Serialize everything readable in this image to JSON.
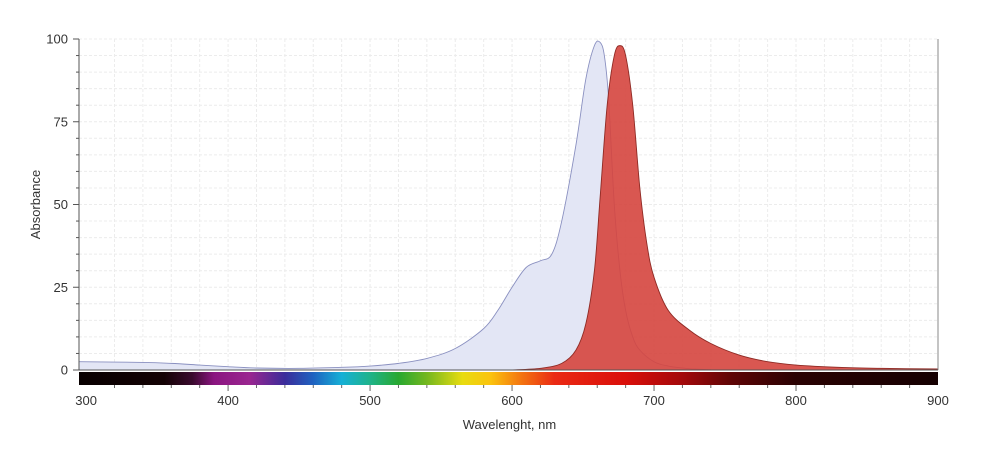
{
  "chart_data": {
    "type": "area",
    "title": "",
    "xlabel": "Wavelenght, nm",
    "ylabel": "Absorbance",
    "xlim": [
      295,
      900
    ],
    "ylim": [
      0,
      100
    ],
    "x_ticks": [
      300,
      400,
      500,
      600,
      700,
      800,
      900
    ],
    "y_ticks": [
      0,
      25,
      50,
      75,
      100
    ],
    "grid": true,
    "legend": "none",
    "colors": {
      "absorbance_fill": "#e3e6f5",
      "absorbance_line": "#8a90c0",
      "emission_fill": "#d5453e",
      "emission_line": "#8f2a24",
      "ylabel_color": "#4a5590"
    },
    "series": [
      {
        "name": "",
        "kind": "absorbance",
        "x": [
          295,
          340,
          360,
          380,
          400,
          420,
          450,
          480,
          500,
          520,
          540,
          560,
          580,
          590,
          600,
          610,
          620,
          628,
          635,
          645,
          652,
          658,
          662,
          665,
          668,
          672,
          676,
          680,
          685,
          690,
          700,
          710,
          725,
          740
        ],
        "y": [
          2.5,
          2.3,
          2.0,
          1.5,
          1.0,
          0.6,
          0.5,
          0.8,
          1.2,
          2.0,
          3.5,
          6.5,
          12.5,
          18,
          25,
          31,
          33,
          35,
          45,
          68,
          88,
          98,
          99,
          95,
          82,
          50,
          30,
          18,
          10,
          6,
          2.5,
          1.2,
          0.4,
          0.1
        ]
      },
      {
        "name": "",
        "kind": "emission",
        "x": [
          600,
          620,
          635,
          645,
          652,
          658,
          662,
          667,
          672,
          676,
          680,
          685,
          690,
          695,
          700,
          710,
          725,
          740,
          760,
          780,
          800,
          830,
          860,
          900
        ],
        "y": [
          0,
          0.5,
          2,
          6,
          14,
          30,
          52,
          80,
          95,
          98,
          95,
          80,
          55,
          38,
          28,
          18,
          12,
          8,
          4.5,
          2.5,
          1.5,
          0.8,
          0.5,
          0.3
        ]
      }
    ],
    "spectrum_bar": {
      "stops": [
        {
          "nm": 295,
          "color": "#080000"
        },
        {
          "nm": 355,
          "color": "#140204"
        },
        {
          "nm": 375,
          "color": "#3a0a2e"
        },
        {
          "nm": 390,
          "color": "#8a1580"
        },
        {
          "nm": 415,
          "color": "#9a2690"
        },
        {
          "nm": 440,
          "color": "#3b2c9a"
        },
        {
          "nm": 460,
          "color": "#1f62c0"
        },
        {
          "nm": 480,
          "color": "#16b0d6"
        },
        {
          "nm": 500,
          "color": "#1fb38a"
        },
        {
          "nm": 520,
          "color": "#28a830"
        },
        {
          "nm": 540,
          "color": "#74b71f"
        },
        {
          "nm": 565,
          "color": "#e8dc10"
        },
        {
          "nm": 585,
          "color": "#fbc30e"
        },
        {
          "nm": 605,
          "color": "#f47a10"
        },
        {
          "nm": 630,
          "color": "#ea2a14"
        },
        {
          "nm": 680,
          "color": "#da0f0a"
        },
        {
          "nm": 720,
          "color": "#a3090b"
        },
        {
          "nm": 755,
          "color": "#5e0506"
        },
        {
          "nm": 800,
          "color": "#2a0203"
        },
        {
          "nm": 900,
          "color": "#150001"
        }
      ]
    }
  }
}
